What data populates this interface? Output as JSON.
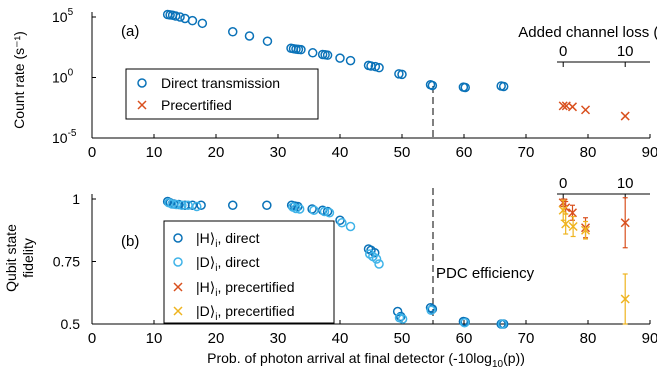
{
  "colors": {
    "direct_h": "#0a72b8",
    "direct_d": "#3fb3e8",
    "precert_h": "#d9501e",
    "precert_d": "#efb41f"
  },
  "chart_data": [
    {
      "type": "scatter",
      "panel_label": "(a)",
      "ylabel": "Count rate (s⁻¹)",
      "xlim": [
        0,
        90
      ],
      "xticks": [
        0,
        10,
        20,
        30,
        40,
        50,
        60,
        70,
        80,
        90
      ],
      "y_scale": "log",
      "ylim_exp": [
        -5,
        5
      ],
      "yticks": [
        {
          "exp": 5,
          "label": "10",
          "sup": "5"
        },
        {
          "exp": 0,
          "label": "10",
          "sup": "0"
        },
        {
          "exp": -5,
          "label": "10",
          "sup": "-5"
        }
      ],
      "top_axis": {
        "label": "Added channel loss (dB)",
        "ticks": [
          {
            "x": 76,
            "label": "0"
          },
          {
            "x": 86,
            "label": "10"
          }
        ]
      },
      "legend": {
        "placement": "inside lower-left"
      },
      "series": [
        {
          "name": "Direct transmission",
          "marker": "circle",
          "color_key": "direct_h",
          "points": [
            [
              12.2,
              160000
            ],
            [
              12.6,
              150000
            ],
            [
              13.0,
              140000
            ],
            [
              13.5,
              120000
            ],
            [
              14.2,
              100000
            ],
            [
              15.0,
              75000
            ],
            [
              16.2,
              50000
            ],
            [
              17.8,
              30000
            ],
            [
              22.7,
              6000
            ],
            [
              25.4,
              2700
            ],
            [
              28.3,
              1000
            ],
            [
              32.1,
              260
            ],
            [
              32.5,
              240
            ],
            [
              32.9,
              220
            ],
            [
              33.3,
              210
            ],
            [
              33.7,
              200
            ],
            [
              35.6,
              110
            ],
            [
              37.2,
              80
            ],
            [
              37.6,
              75
            ],
            [
              38.0,
              70
            ],
            [
              40.0,
              40
            ],
            [
              41.7,
              25
            ],
            [
              44.6,
              10
            ],
            [
              45.0,
              9
            ],
            [
              45.7,
              8
            ],
            [
              46.3,
              6.5
            ],
            [
              49.5,
              2
            ],
            [
              50.0,
              1.8
            ],
            [
              54.6,
              0.25
            ],
            [
              54.9,
              0.22
            ],
            [
              59.9,
              0.16
            ],
            [
              60.2,
              0.15
            ],
            [
              66.0,
              0.2
            ],
            [
              66.4,
              0.18
            ]
          ]
        },
        {
          "name": "Precertified",
          "marker": "x",
          "color_key": "precert_h",
          "points": [
            [
              76.0,
              0.0045
            ],
            [
              76.5,
              0.0045
            ],
            [
              77.5,
              0.0038
            ],
            [
              79.6,
              0.0021
            ],
            [
              86.0,
              0.00065
            ]
          ]
        }
      ]
    },
    {
      "type": "scatter",
      "panel_label": "(b)",
      "ylabel_lines": [
        "Qubit state",
        "fidelity"
      ],
      "xlabel": "Prob. of photon arrival at final detector (-10log",
      "xlabel_sub": "10",
      "xlabel_tail": "(p))",
      "xlim": [
        0,
        90
      ],
      "xticks": [
        0,
        10,
        20,
        30,
        40,
        50,
        60,
        70,
        80,
        90
      ],
      "ylim": [
        0.5,
        1.02
      ],
      "yticks": [
        0.5,
        0.75,
        1
      ],
      "ytick_labels": [
        "0.5",
        "0.75",
        "1"
      ],
      "top_axis": {
        "ticks": [
          {
            "x": 76,
            "label": "0"
          },
          {
            "x": 86,
            "label": "10"
          }
        ]
      },
      "annotation": "PDC efficiency",
      "vline_x": 55,
      "legend": {
        "placement": "inside left"
      },
      "series": [
        {
          "name": "|H⟩ᵢ, direct",
          "name_main": "|H⟩",
          "name_sub": "i",
          "name_tail": ", direct",
          "marker": "circle",
          "color_key": "direct_h",
          "points": [
            [
              12.2,
              0.99
            ],
            [
              12.6,
              0.985
            ],
            [
              13.2,
              0.98
            ],
            [
              14.0,
              0.978
            ],
            [
              15.0,
              0.975
            ],
            [
              16.2,
              0.975
            ],
            [
              17.6,
              0.975
            ],
            [
              22.7,
              0.975
            ],
            [
              28.2,
              0.975
            ],
            [
              32.2,
              0.975
            ],
            [
              32.7,
              0.972
            ],
            [
              33.2,
              0.97
            ],
            [
              35.5,
              0.96
            ],
            [
              37.2,
              0.955
            ],
            [
              38.0,
              0.95
            ],
            [
              40.0,
              0.915
            ],
            [
              44.6,
              0.8
            ],
            [
              45.0,
              0.795
            ],
            [
              45.6,
              0.785
            ],
            [
              49.3,
              0.55
            ],
            [
              49.8,
              0.53
            ],
            [
              54.6,
              0.565
            ],
            [
              54.9,
              0.56
            ],
            [
              59.9,
              0.51
            ],
            [
              60.2,
              0.508
            ],
            [
              66.0,
              0.5
            ],
            [
              66.4,
              0.5
            ]
          ]
        },
        {
          "name": "|D⟩ᵢ, direct",
          "name_main": "|D⟩",
          "name_sub": "i",
          "name_tail": ", direct",
          "marker": "circle",
          "color_key": "direct_d",
          "points": [
            [
              12.4,
              0.985
            ],
            [
              12.9,
              0.98
            ],
            [
              13.6,
              0.978
            ],
            [
              14.5,
              0.975
            ],
            [
              15.5,
              0.975
            ],
            [
              16.9,
              0.97
            ],
            [
              32.4,
              0.968
            ],
            [
              32.9,
              0.962
            ],
            [
              33.5,
              0.96
            ],
            [
              35.8,
              0.955
            ],
            [
              37.5,
              0.95
            ],
            [
              38.3,
              0.945
            ],
            [
              40.3,
              0.905
            ],
            [
              41.7,
              0.89
            ],
            [
              44.8,
              0.78
            ],
            [
              45.3,
              0.77
            ],
            [
              45.9,
              0.76
            ],
            [
              46.3,
              0.74
            ],
            [
              49.6,
              0.525
            ],
            [
              50.1,
              0.52
            ],
            [
              54.7,
              0.555
            ],
            [
              60.1,
              0.505
            ],
            [
              66.2,
              0.5
            ]
          ]
        },
        {
          "name": "|H⟩ᵢ, precertified",
          "name_main": "|H⟩",
          "name_sub": "i",
          "name_tail": ", precertified",
          "marker": "x",
          "color_key": "precert_h",
          "points": [
            [
              76.0,
              0.985,
              0.015
            ],
            [
              76.4,
              0.965,
              0.025
            ],
            [
              77.5,
              0.945,
              0.03
            ],
            [
              79.6,
              0.885,
              0.04
            ],
            [
              86.0,
              0.905,
              0.1
            ]
          ]
        },
        {
          "name": "|D⟩ᵢ, precertified",
          "name_main": "|D⟩",
          "name_sub": "i",
          "name_tail": ", precertified",
          "marker": "x",
          "color_key": "precert_d",
          "points": [
            [
              76.0,
              0.955,
              0.04
            ],
            [
              76.4,
              0.9,
              0.04
            ],
            [
              77.6,
              0.89,
              0.04
            ],
            [
              79.6,
              0.875,
              0.035
            ],
            [
              86.0,
              0.6,
              0.1
            ]
          ]
        }
      ]
    }
  ]
}
